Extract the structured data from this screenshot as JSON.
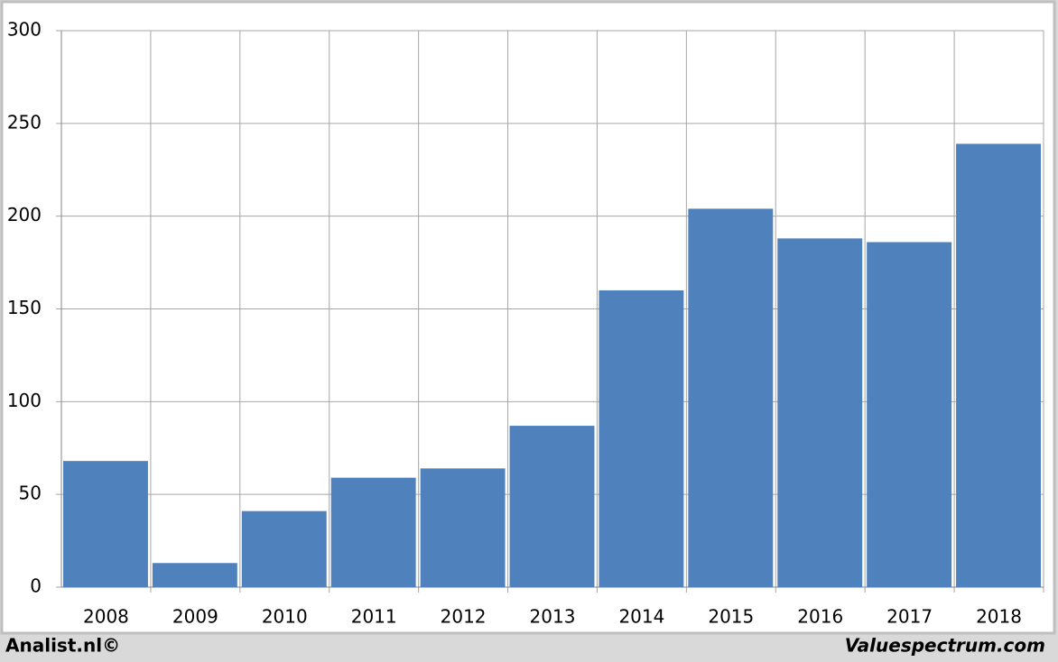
{
  "chart_data": {
    "type": "bar",
    "categories": [
      "2008",
      "2009",
      "2010",
      "2011",
      "2012",
      "2013",
      "2014",
      "2015",
      "2016",
      "2017",
      "2018"
    ],
    "values": [
      68,
      13,
      41,
      59,
      64,
      87,
      160,
      204,
      188,
      186,
      239
    ],
    "color": "#4f81bd",
    "ylim": [
      0,
      300
    ],
    "yticks": [
      0,
      50,
      100,
      150,
      200,
      250,
      300
    ],
    "grid": true
  },
  "footer": {
    "left": "Analist.nl©",
    "right": "Valuespectrum.com"
  }
}
